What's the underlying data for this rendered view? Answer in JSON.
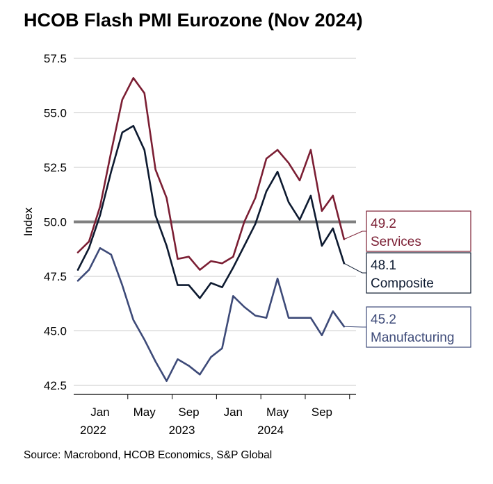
{
  "title": "HCOB Flash PMI Eurozone (Nov 2024)",
  "source": "Source: Macrobond, HCOB Economics, S&P Global",
  "chart_data": {
    "type": "line",
    "ylabel": "Index",
    "ylim": [
      42.5,
      57.5
    ],
    "yticks": [
      "57.5",
      "55.0",
      "52.5",
      "50.0",
      "47.5",
      "45.0",
      "42.5"
    ],
    "ytick_values": [
      57.5,
      55.0,
      52.5,
      50.0,
      47.5,
      45.0,
      42.5
    ],
    "reference_line": 50.0,
    "x_start": "2021-11",
    "x_end": "2024-11",
    "month_ticks": [
      {
        "label": "Jan",
        "month": "2022-01"
      },
      {
        "label": "May",
        "month": "2022-05"
      },
      {
        "label": "Sep",
        "month": "2022-09"
      },
      {
        "label": "Jan",
        "month": "2023-01"
      },
      {
        "label": "May",
        "month": "2023-05"
      },
      {
        "label": "Sep",
        "month": "2023-09"
      }
    ],
    "year_ticks": [
      {
        "label": "2022",
        "month": "2022-01"
      },
      {
        "label": "2023",
        "month": "2022-09"
      },
      {
        "label": "2024",
        "month": "2023-05"
      }
    ],
    "grid": "horizontal",
    "series": [
      {
        "name": "Services",
        "color": "#7b1e33",
        "label_value": "49.2",
        "values": [
          48.6,
          49.1,
          50.7,
          53.2,
          55.6,
          56.6,
          55.9,
          52.4,
          51.1,
          48.3,
          48.4,
          47.8,
          48.2,
          48.1,
          48.4,
          50.0,
          51.1,
          52.9,
          53.3,
          52.7,
          51.9,
          53.3,
          50.5,
          51.2,
          49.2
        ]
      },
      {
        "name": "Composite",
        "color": "#0d1a30",
        "label_value": "48.1",
        "values": [
          47.8,
          48.8,
          50.3,
          52.3,
          54.1,
          54.4,
          53.3,
          50.3,
          48.9,
          47.1,
          47.1,
          46.5,
          47.2,
          47.0,
          47.9,
          48.9,
          49.9,
          51.4,
          52.3,
          50.9,
          50.1,
          51.2,
          48.9,
          49.7,
          48.1
        ]
      },
      {
        "name": "Manufacturing",
        "color": "#3d4a78",
        "label_value": "45.2",
        "values": [
          47.3,
          47.8,
          48.8,
          48.5,
          47.1,
          45.5,
          44.6,
          43.6,
          42.7,
          43.7,
          43.4,
          43.0,
          43.8,
          44.2,
          46.6,
          46.1,
          45.7,
          45.6,
          47.4,
          45.6,
          45.6,
          45.6,
          44.8,
          45.9,
          45.2
        ]
      }
    ]
  }
}
